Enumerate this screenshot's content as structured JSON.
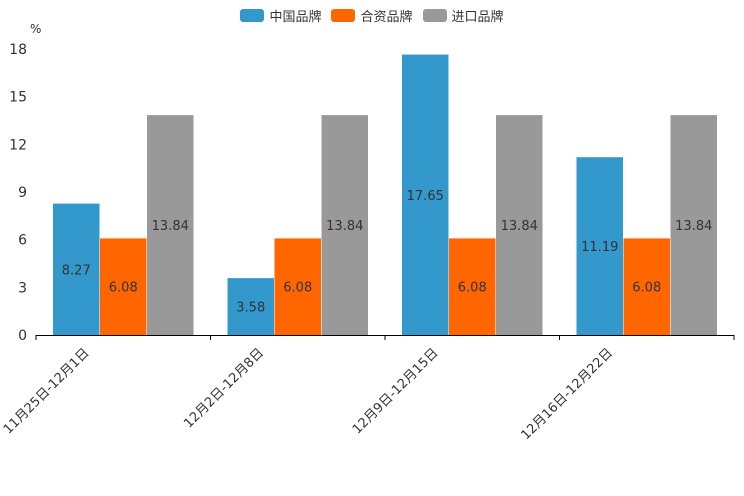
{
  "chart_data": {
    "type": "bar",
    "unit_label": "%",
    "categories": [
      "11月25日-12月1日",
      "12月2日-12月8日",
      "12月9日-12月15日",
      "12月16日-12月22日"
    ],
    "series": [
      {
        "name": "中国品牌",
        "color": "#3398CC",
        "values": [
          8.27,
          3.58,
          17.65,
          11.19
        ]
      },
      {
        "name": "合资品牌",
        "color": "#FF6600",
        "values": [
          6.08,
          6.08,
          6.08,
          6.08
        ]
      },
      {
        "name": "进口品牌",
        "color": "#999999",
        "values": [
          13.84,
          13.84,
          13.84,
          13.84
        ]
      }
    ],
    "ylim": [
      0,
      18
    ],
    "yticks": [
      0,
      3,
      6,
      9,
      12,
      15,
      18
    ],
    "legend_position": "top-center"
  }
}
